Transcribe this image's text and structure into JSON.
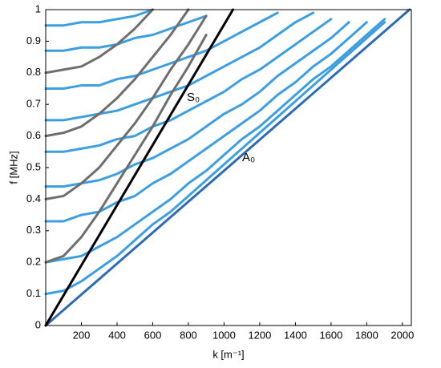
{
  "chart_data": {
    "type": "line",
    "xlabel": "k [m⁻¹]",
    "ylabel": "f [MHz]",
    "annotations": [
      "S₀",
      "A₀"
    ],
    "xlim": [
      0,
      2050
    ],
    "ylim": [
      0,
      1
    ],
    "xticks": [
      200,
      400,
      600,
      800,
      1000,
      1200,
      1400,
      1600,
      1800,
      2000
    ],
    "yticks": [
      0,
      0.1,
      0.2,
      0.3,
      0.4,
      0.5,
      0.6,
      0.7,
      0.8,
      0.9,
      1
    ],
    "grid": false,
    "x": [
      0,
      100,
      200,
      300,
      400,
      500,
      600,
      700,
      800,
      900,
      1000,
      1100,
      1200,
      1300,
      1400,
      1500,
      1600,
      1700,
      1800,
      1900,
      2000
    ],
    "series": [
      {
        "color": "#3d9fe0",
        "values": [
          0.1,
          0.11,
          0.14,
          0.18,
          0.22,
          0.27,
          0.32,
          0.36,
          0.41,
          0.46,
          0.51,
          0.56,
          0.61,
          0.66,
          0.71,
          0.76,
          0.81,
          0.86,
          0.91,
          0.96,
          null
        ]
      },
      {
        "color": "#3d9fe0",
        "values": [
          0.2,
          0.21,
          0.22,
          0.25,
          0.28,
          0.32,
          0.36,
          0.4,
          0.45,
          0.49,
          0.54,
          0.59,
          0.63,
          0.68,
          0.73,
          0.78,
          0.82,
          0.87,
          0.92,
          0.97,
          null
        ]
      },
      {
        "color": "#3d9fe0",
        "values": [
          0.33,
          0.33,
          0.35,
          0.36,
          0.39,
          0.41,
          0.45,
          0.48,
          0.52,
          0.56,
          0.6,
          0.64,
          0.68,
          0.73,
          0.77,
          0.82,
          0.86,
          0.91,
          0.96,
          null,
          null
        ]
      },
      {
        "color": "#3d9fe0",
        "values": [
          0.44,
          0.44,
          0.45,
          0.46,
          0.48,
          0.51,
          0.53,
          0.56,
          0.59,
          0.63,
          0.67,
          0.7,
          0.74,
          0.79,
          0.83,
          0.87,
          0.91,
          0.96,
          null,
          null,
          null
        ]
      },
      {
        "color": "#3d9fe0",
        "values": [
          0.55,
          0.55,
          0.56,
          0.57,
          0.59,
          0.6,
          0.63,
          0.65,
          0.68,
          0.71,
          0.74,
          0.78,
          0.81,
          0.85,
          0.89,
          0.93,
          0.97,
          null,
          null,
          null,
          null
        ]
      },
      {
        "color": "#3d9fe0",
        "values": [
          0.65,
          0.65,
          0.66,
          0.67,
          0.68,
          0.7,
          0.72,
          0.74,
          0.76,
          0.79,
          0.82,
          0.85,
          0.88,
          0.92,
          0.96,
          0.99,
          null,
          null,
          null,
          null,
          null
        ]
      },
      {
        "color": "#3d9fe0",
        "values": [
          0.75,
          0.75,
          0.76,
          0.76,
          0.78,
          0.79,
          0.81,
          0.83,
          0.85,
          0.87,
          0.9,
          0.93,
          0.96,
          0.99,
          null,
          null,
          null,
          null,
          null,
          null,
          null
        ]
      },
      {
        "color": "#3d9fe0",
        "values": [
          0.87,
          0.87,
          0.88,
          0.88,
          0.89,
          0.91,
          0.92,
          0.94,
          0.96,
          0.98,
          null,
          null,
          null,
          null,
          null,
          null,
          null,
          null,
          null,
          null,
          null
        ]
      },
      {
        "color": "#3d9fe0",
        "values": [
          0.95,
          0.95,
          0.96,
          0.96,
          0.97,
          0.98,
          1,
          null,
          null,
          null,
          null,
          null,
          null,
          null,
          null,
          null,
          null,
          null,
          null,
          null,
          null
        ]
      },
      {
        "color": "#6e6e6e",
        "values": [
          0.2,
          0.22,
          0.28,
          0.36,
          0.45,
          0.54,
          0.63,
          0.73,
          0.82,
          0.92,
          null,
          null,
          null,
          null,
          null,
          null,
          null,
          null,
          null,
          null,
          null
        ]
      },
      {
        "color": "#6e6e6e",
        "values": [
          0.4,
          0.41,
          0.45,
          0.5,
          0.57,
          0.64,
          0.72,
          0.81,
          0.89,
          0.98,
          null,
          null,
          null,
          null,
          null,
          null,
          null,
          null,
          null,
          null,
          null
        ]
      },
      {
        "color": "#6e6e6e",
        "values": [
          0.6,
          0.61,
          0.63,
          0.67,
          0.72,
          0.78,
          0.85,
          0.92,
          1,
          null,
          null,
          null,
          null,
          null,
          null,
          null,
          null,
          null,
          null,
          null,
          null
        ]
      },
      {
        "color": "#6e6e6e",
        "values": [
          0.8,
          0.81,
          0.82,
          0.85,
          0.89,
          0.94,
          1,
          null,
          null,
          null,
          null,
          null,
          null,
          null,
          null,
          null,
          null,
          null,
          null,
          null,
          null
        ]
      },
      {
        "color": "#2f6bb5",
        "x": [
          0,
          2040
        ],
        "values": [
          0,
          1
        ]
      },
      {
        "color": "#000000",
        "x": [
          0,
          1050
        ],
        "values": [
          0,
          1
        ]
      }
    ]
  }
}
